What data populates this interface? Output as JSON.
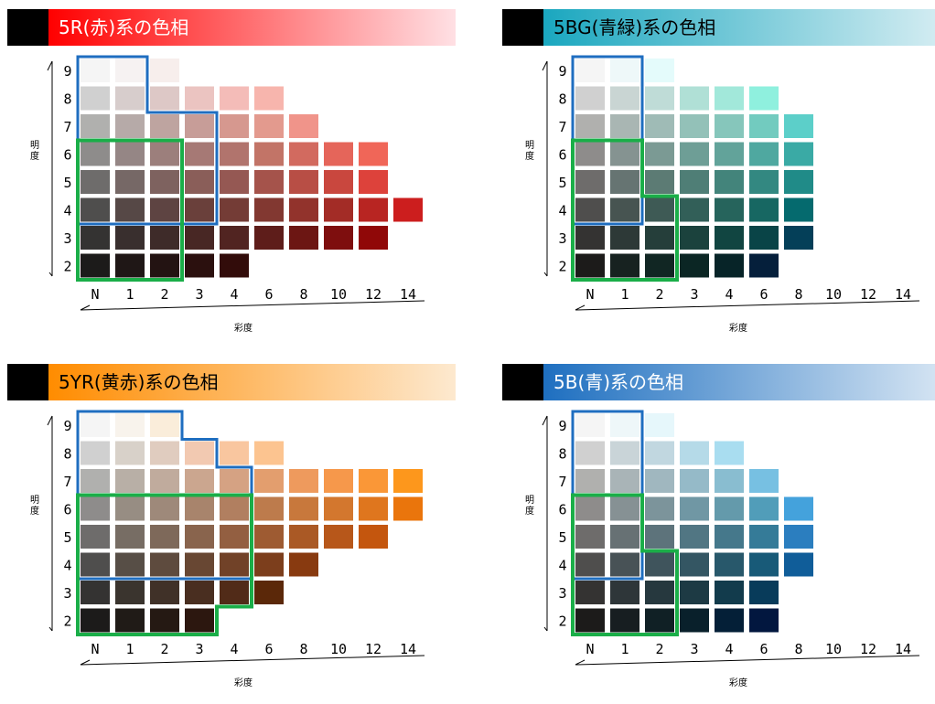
{
  "labels": {
    "value_axis": [
      "明",
      "度"
    ],
    "chroma_axis": "彩度"
  },
  "chart_data": [
    {
      "type": "heatmap",
      "title": "5R(赤)系の色相",
      "banner_colors": [
        "#ff0000",
        "#ffe0e4"
      ],
      "title_color": "#ffffff",
      "chroma_ticks": [
        "N",
        "1",
        "2",
        "3",
        "4",
        "6",
        "8",
        "10",
        "12",
        "14"
      ],
      "value_ticks": [
        "9",
        "8",
        "7",
        "6",
        "5",
        "4",
        "3",
        "2"
      ],
      "rows": [
        {
          "value": "9",
          "colors": [
            "#f5f5f5",
            "#f6f2f2",
            "#f7eeec"
          ]
        },
        {
          "value": "8",
          "colors": [
            "#d0d0d0",
            "#d7cdcc",
            "#ddc8c6",
            "#ebc4c1",
            "#f4bcb8",
            "#f7b5ad"
          ]
        },
        {
          "value": "7",
          "colors": [
            "#b0b0ae",
            "#b6aaa8",
            "#bea4a0",
            "#c79d98",
            "#d6988f",
            "#e39a8e",
            "#f0948a"
          ]
        },
        {
          "value": "6",
          "colors": [
            "#8e8c8b",
            "#958685",
            "#9c7f7c",
            "#a67975",
            "#b1746d",
            "#c27467",
            "#d26a5f",
            "#e5655a",
            "#f06658"
          ]
        },
        {
          "value": "5",
          "colors": [
            "#6e6c6b",
            "#766866",
            "#7e625f",
            "#8a5e59",
            "#955853",
            "#a5534b",
            "#b84e45",
            "#c9473e",
            "#dd423b"
          ]
        },
        {
          "value": "4",
          "colors": [
            "#4f4e4d",
            "#564846",
            "#5e4442",
            "#6a403b",
            "#743c36",
            "#823831",
            "#92332c",
            "#a32c26",
            "#b82522",
            "#cc1e1e"
          ]
        },
        {
          "value": "3",
          "colors": [
            "#343332",
            "#392f2e",
            "#3e2b29",
            "#482724",
            "#512421",
            "#5e1d1a",
            "#6c1613",
            "#7e0e0e",
            "#900808"
          ]
        },
        {
          "value": "2",
          "colors": [
            "#1c1b1a",
            "#1f1716",
            "#231312",
            "#2b100e",
            "#320c0a"
          ]
        }
      ],
      "blue_region": "mostly achromatic boundary",
      "green_region": "low chroma boundary"
    },
    {
      "type": "heatmap",
      "title": "5BG(青緑)系の色相",
      "banner_colors": [
        "#1aa7bf",
        "#d8eef3"
      ],
      "title_color": "#000000",
      "chroma_ticks": [
        "N",
        "1",
        "2",
        "3",
        "4",
        "6",
        "8",
        "10",
        "12",
        "14"
      ],
      "value_ticks": [
        "9",
        "8",
        "7",
        "6",
        "5",
        "4",
        "3",
        "2"
      ],
      "rows": [
        {
          "value": "9",
          "colors": [
            "#f5f5f5",
            "#eef8f9",
            "#e4fbfb"
          ]
        },
        {
          "value": "8",
          "colors": [
            "#d0d0d0",
            "#c9d5d3",
            "#bfdcd7",
            "#b0e0d6",
            "#a2e8da",
            "#8ff0de"
          ]
        },
        {
          "value": "7",
          "colors": [
            "#b0b0ae",
            "#a9b6b3",
            "#9fbbb6",
            "#93c1b8",
            "#86c6bb",
            "#72cbbf",
            "#5ccfc9"
          ]
        },
        {
          "value": "6",
          "colors": [
            "#8e8c8b",
            "#859391",
            "#7b9a94",
            "#6e9e96",
            "#62a39a",
            "#4fa8a0",
            "#3aaaa5"
          ]
        },
        {
          "value": "5",
          "colors": [
            "#6e6c6b",
            "#667472",
            "#5c7b74",
            "#4f7e76",
            "#43847b",
            "#338881",
            "#208b88"
          ]
        },
        {
          "value": "4",
          "colors": [
            "#4f4e4d",
            "#475451",
            "#3e5a55",
            "#325f58",
            "#26645c",
            "#176762",
            "#056a6e"
          ]
        },
        {
          "value": "3",
          "colors": [
            "#343332",
            "#2d3937",
            "#253e3a",
            "#1b423d",
            "#114541",
            "#094447",
            "#043f58"
          ]
        },
        {
          "value": "2",
          "colors": [
            "#1c1b1a",
            "#172220",
            "#112623",
            "#0b2624",
            "#072428",
            "#051f3b"
          ]
        }
      ],
      "blue_region": "mostly achromatic boundary",
      "green_region": "low chroma boundary"
    },
    {
      "type": "heatmap",
      "title": "5YR(黄赤)系の色相",
      "banner_colors": [
        "#ff8c00",
        "#fde9cf"
      ],
      "title_color": "#000000",
      "chroma_ticks": [
        "N",
        "1",
        "2",
        "3",
        "4",
        "6",
        "8",
        "10",
        "12",
        "14"
      ],
      "value_ticks": [
        "9",
        "8",
        "7",
        "6",
        "5",
        "4",
        "3",
        "2"
      ],
      "rows": [
        {
          "value": "9",
          "colors": [
            "#f5f5f5",
            "#f8f3ec",
            "#faedda"
          ]
        },
        {
          "value": "8",
          "colors": [
            "#d0d0d0",
            "#d8d1c9",
            "#e0ccbf",
            "#f2c9b1",
            "#f9c69f",
            "#fcc490"
          ]
        },
        {
          "value": "7",
          "colors": [
            "#b0b0ae",
            "#b8afa6",
            "#c0ab9d",
            "#cba68f",
            "#d5a283",
            "#e39e6e",
            "#ee9a5d",
            "#f6984b",
            "#fa9737",
            "#fd971c"
          ]
        },
        {
          "value": "6",
          "colors": [
            "#8e8c8b",
            "#978d83",
            "#9e897a",
            "#a8846c",
            "#b17f60",
            "#bd7b4c",
            "#c8783c",
            "#d3772e",
            "#df761e",
            "#ea750c"
          ]
        },
        {
          "value": "5",
          "colors": [
            "#6e6c6b",
            "#776d64",
            "#7e695a",
            "#89644d",
            "#935f41",
            "#9e5b32",
            "#aa5925",
            "#b7571a",
            "#c4560e"
          ]
        },
        {
          "value": "4",
          "colors": [
            "#4f4e4d",
            "#574e46",
            "#5e4b3e",
            "#684733",
            "#714228",
            "#7c3e1c",
            "#883a10"
          ]
        },
        {
          "value": "3",
          "colors": [
            "#343332",
            "#3a342e",
            "#403128",
            "#492e20",
            "#512b18",
            "#5b2809"
          ]
        },
        {
          "value": "2",
          "colors": [
            "#1c1b1a",
            "#201b17",
            "#251913",
            "#2c170f"
          ]
        }
      ],
      "blue_region": "mostly achromatic boundary",
      "green_region": "low chroma boundary"
    },
    {
      "type": "heatmap",
      "title": "5B(青)系の色相",
      "banner_colors": [
        "#1e6fc0",
        "#d9e7f4"
      ],
      "title_color": "#ffffff",
      "chroma_ticks": [
        "N",
        "1",
        "2",
        "3",
        "4",
        "6",
        "8",
        "10",
        "12",
        "14"
      ],
      "value_ticks": [
        "9",
        "8",
        "7",
        "6",
        "5",
        "4",
        "3",
        "2"
      ],
      "rows": [
        {
          "value": "9",
          "colors": [
            "#f5f5f5",
            "#eef7f9",
            "#e6f7fb"
          ]
        },
        {
          "value": "8",
          "colors": [
            "#d0d0d0",
            "#c9d4d8",
            "#c1d7e0",
            "#b5dae8",
            "#a9ddf0"
          ]
        },
        {
          "value": "7",
          "colors": [
            "#b0b0ae",
            "#a9b4b7",
            "#a0b7bf",
            "#95bac8",
            "#89bdd0",
            "#77c0e2"
          ]
        },
        {
          "value": "6",
          "colors": [
            "#8e8c8b",
            "#869194",
            "#7c949b",
            "#7097a4",
            "#649aab",
            "#519db9",
            "#44a2dc"
          ]
        },
        {
          "value": "5",
          "colors": [
            "#6e6c6b",
            "#677174",
            "#5d737b",
            "#517683",
            "#45788b",
            "#357b98",
            "#2b7ebf"
          ]
        },
        {
          "value": "4",
          "colors": [
            "#4f4e4d",
            "#485256",
            "#3f545c",
            "#345663",
            "#28586b",
            "#185a78",
            "#105d99"
          ]
        },
        {
          "value": "3",
          "colors": [
            "#343332",
            "#2e3639",
            "#26383e",
            "#1d3a44",
            "#123b4c",
            "#083b5a"
          ]
        },
        {
          "value": "2",
          "colors": [
            "#1c1b1a",
            "#171e21",
            "#102025",
            "#09202b",
            "#041f37",
            "#02173f"
          ]
        }
      ],
      "blue_region": "mostly achromatic boundary",
      "green_region": "low chroma boundary"
    }
  ]
}
